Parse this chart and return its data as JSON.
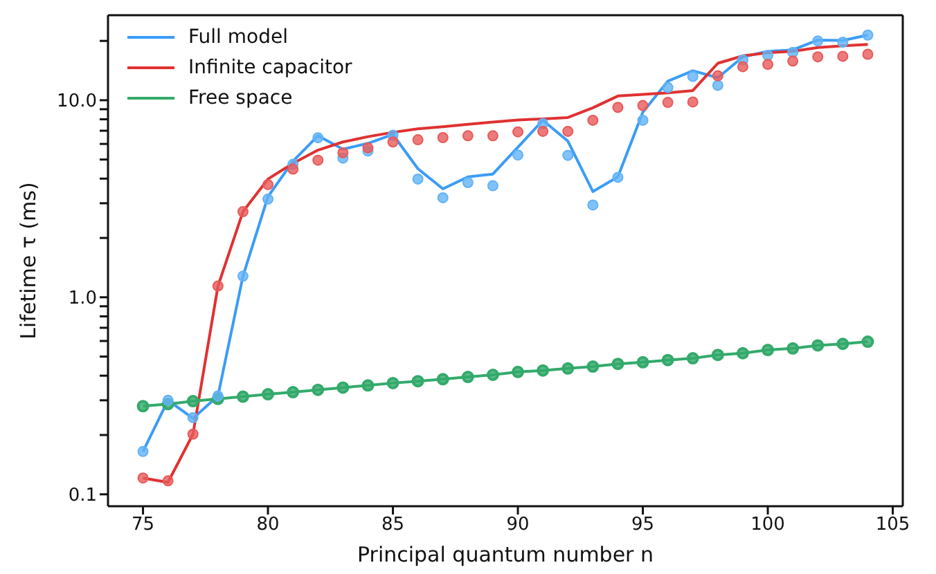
{
  "chart_data": {
    "type": "line",
    "xlabel": "Principal quantum number n",
    "ylabel": "Lifetime τ (ms)",
    "x": [
      75,
      76,
      77,
      78,
      79,
      80,
      81,
      82,
      83,
      84,
      85,
      86,
      87,
      88,
      89,
      90,
      91,
      92,
      93,
      94,
      95,
      96,
      97,
      98,
      99,
      100,
      101,
      102,
      103,
      104
    ],
    "series": [
      {
        "name": "Full model",
        "color": "#3b9cf5",
        "marker": "none",
        "values": [
          0.165,
          0.3,
          0.243,
          0.316,
          1.28,
          3.24,
          4.9,
          6.6,
          5.64,
          6.04,
          6.7,
          4.49,
          3.55,
          4.08,
          4.22,
          5.77,
          7.91,
          6.2,
          3.44,
          4.08,
          8.69,
          12.5,
          14.1,
          13.0,
          16.6,
          17.7,
          18.0,
          20.2,
          20.1,
          21.4
        ]
      },
      {
        "name": "Infinite capacitor",
        "color": "#e03131",
        "marker": "none",
        "values": [
          0.121,
          0.115,
          0.202,
          1.14,
          2.72,
          3.98,
          4.78,
          5.58,
          6.14,
          6.53,
          6.87,
          7.16,
          7.34,
          7.55,
          7.74,
          7.94,
          8.04,
          8.17,
          9.15,
          10.5,
          10.7,
          10.9,
          11.2,
          15.4,
          16.8,
          17.4,
          17.7,
          18.5,
          18.9,
          19.2
        ]
      },
      {
        "name": "Free space",
        "color": "#33aa6b",
        "marker": "circle",
        "values": [
          0.28,
          0.287,
          0.297,
          0.305,
          0.313,
          0.322,
          0.33,
          0.339,
          0.348,
          0.357,
          0.367,
          0.375,
          0.384,
          0.394,
          0.404,
          0.418,
          0.425,
          0.435,
          0.445,
          0.459,
          0.468,
          0.48,
          0.49,
          0.51,
          0.52,
          0.54,
          0.55,
          0.57,
          0.58,
          0.595
        ]
      },
      {
        "type": "scatter",
        "color": "#62b3f7",
        "marker": "circle",
        "values": [
          0.165,
          0.3,
          0.245,
          0.316,
          1.28,
          3.15,
          4.73,
          6.45,
          5.08,
          5.52,
          6.64,
          3.98,
          3.2,
          3.82,
          3.68,
          5.27,
          7.6,
          5.25,
          2.94,
          4.06,
          7.91,
          11.6,
          13.2,
          11.9,
          16.0,
          16.9,
          17.5,
          20.0,
          19.7,
          21.4
        ]
      },
      {
        "type": "scatter",
        "color": "#e85a5a",
        "marker": "circle",
        "values": [
          0.121,
          0.117,
          0.202,
          1.14,
          2.72,
          3.73,
          4.47,
          4.96,
          5.41,
          5.73,
          6.14,
          6.3,
          6.46,
          6.6,
          6.6,
          6.91,
          6.95,
          6.95,
          7.91,
          9.2,
          9.4,
          9.75,
          9.8,
          13.3,
          14.8,
          15.2,
          15.8,
          16.6,
          16.7,
          17.1
        ]
      }
    ],
    "xlim": [
      73.6,
      105.4
    ],
    "xticks": [
      75,
      80,
      85,
      90,
      95,
      100,
      105
    ],
    "ylim": [
      0.087,
      27
    ],
    "log": "y",
    "yticks": [
      0.1,
      {
        "value": 0.2,
        "label": null
      },
      {
        "value": 0.3,
        "label": null
      },
      {
        "value": 0.4,
        "label": null
      },
      {
        "value": 0.5,
        "label": null
      },
      {
        "value": 0.6,
        "label": null
      },
      {
        "value": 0.7,
        "label": null
      },
      {
        "value": 0.8,
        "label": null
      },
      {
        "value": 0.9,
        "label": null
      },
      {
        "value": 1,
        "label": "1.0"
      },
      {
        "value": 2,
        "label": null
      },
      {
        "value": 3,
        "label": null
      },
      {
        "value": 4,
        "label": null
      },
      {
        "value": 5,
        "label": null
      },
      {
        "value": 6,
        "label": null
      },
      {
        "value": 7,
        "label": null
      },
      {
        "value": 8,
        "label": null
      },
      {
        "value": 9,
        "label": null
      },
      {
        "value": 10,
        "label": "10.0"
      },
      {
        "value": 20,
        "label": null
      }
    ],
    "grid": false,
    "legend": "top left"
  }
}
